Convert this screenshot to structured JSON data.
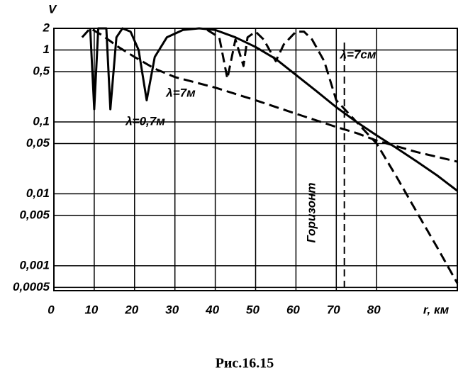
{
  "chart_data": {
    "type": "line",
    "caption": "Рис.16.15",
    "ylabel": "V",
    "xlabel": "r, км",
    "log_y": true,
    "grid": true,
    "xlim": [
      0,
      100
    ],
    "ylim": [
      0.00045,
      2
    ],
    "xticks": [
      0,
      10,
      20,
      30,
      40,
      50,
      60,
      70,
      80
    ],
    "yticks": [
      2,
      1,
      {
        "value": 0.5,
        "label": "0,5"
      },
      {
        "value": 0.1,
        "label": "0,1"
      },
      {
        "value": 0.05,
        "label": "0,05"
      },
      {
        "value": 0.01,
        "label": "0,01"
      },
      {
        "value": 0.005,
        "label": "0,005"
      },
      {
        "value": 0.001,
        "label": "0,001"
      },
      {
        "value": 0.0005,
        "label": "0,0005"
      }
    ],
    "horizon": {
      "label": "Горизонт",
      "x": 72
    },
    "series": [
      {
        "name": "λ=7м",
        "color": "#000000",
        "dash": false,
        "x": [
          9,
          10,
          11,
          13,
          14,
          15.5,
          17,
          19,
          21,
          23,
          25,
          28,
          32,
          36,
          40,
          45,
          50,
          55,
          60,
          65,
          70,
          75,
          80,
          85,
          90,
          95,
          100
        ],
        "values": [
          2,
          0.15,
          2,
          2,
          0.15,
          1.5,
          2,
          1.8,
          1,
          0.2,
          0.8,
          1.5,
          1.9,
          2,
          1.9,
          1.5,
          1.1,
          0.75,
          0.45,
          0.27,
          0.16,
          0.1,
          0.065,
          0.043,
          0.028,
          0.018,
          0.011
        ]
      },
      {
        "name": "λ=0,7м",
        "color": "#000000",
        "dash": true,
        "x": [
          7,
          9,
          12,
          16,
          20,
          25,
          30,
          40,
          50,
          60,
          70,
          75,
          80,
          90,
          100
        ],
        "values": [
          1.5,
          2,
          1.6,
          1.1,
          0.8,
          0.55,
          0.42,
          0.3,
          0.2,
          0.13,
          0.085,
          0.07,
          0.055,
          0.038,
          0.028
        ]
      },
      {
        "name": "λ=7см",
        "color": "#000000",
        "dash": true,
        "x": [
          38,
          41,
          43,
          45,
          47,
          48,
          50,
          52,
          55,
          57,
          60,
          62,
          64,
          67,
          70,
          75,
          80,
          85,
          90,
          95,
          100
        ],
        "values": [
          1.9,
          1.5,
          0.4,
          1.4,
          0.6,
          1.5,
          1.8,
          1.4,
          0.7,
          1.2,
          1.8,
          1.8,
          1.4,
          0.7,
          0.2,
          0.1,
          0.05,
          0.017,
          0.0055,
          0.0018,
          0.00057
        ]
      }
    ]
  }
}
